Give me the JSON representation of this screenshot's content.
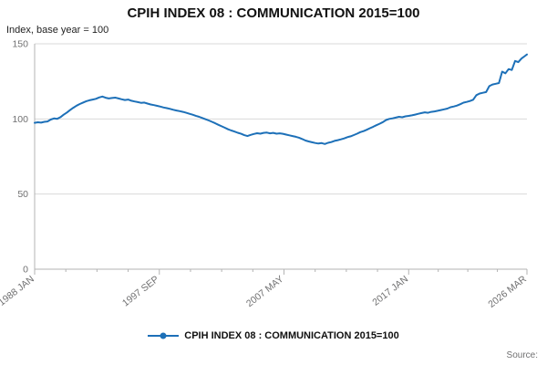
{
  "page": {
    "title": "CPIH INDEX 08 : COMMUNICATION 2015=100",
    "subtitle": "Index, base year = 100",
    "source_label": "Source:"
  },
  "chart_data": {
    "type": "line",
    "title": "CPIH INDEX 08 : COMMUNICATION 2015=100",
    "ylabel": "Index, base year = 100",
    "xlabel": "",
    "xlim": [
      1988.0,
      2026.17
    ],
    "ylim": [
      0,
      150
    ],
    "y_ticks": [
      0,
      50,
      100,
      150
    ],
    "x_ticks": [
      {
        "year": 1988.0,
        "label": "1988 JAN"
      },
      {
        "year": 1997.667,
        "label": "1997 SEP"
      },
      {
        "year": 2007.333,
        "label": "2007 MAY"
      },
      {
        "year": 2017.0,
        "label": "2017 JAN"
      },
      {
        "year": 2026.17,
        "label": "2026 MAR"
      }
    ],
    "grid": "horizontal",
    "legend_position": "bottom",
    "line_color": "#1d70b8",
    "grid_color": "#d9d9d9",
    "axis_color": "#b3b3b3",
    "tick_label_color": "#707071",
    "series": [
      {
        "name": "CPIH INDEX 08 : COMMUNICATION 2015=100",
        "points": [
          [
            1988.0,
            97.4
          ],
          [
            1988.25,
            97.8
          ],
          [
            1988.5,
            97.5
          ],
          [
            1988.75,
            98.1
          ],
          [
            1989.0,
            98.3
          ],
          [
            1989.25,
            99.6
          ],
          [
            1989.5,
            100.3
          ],
          [
            1989.75,
            100.1
          ],
          [
            1990.0,
            101.2
          ],
          [
            1990.25,
            102.8
          ],
          [
            1990.5,
            104.3
          ],
          [
            1990.75,
            105.9
          ],
          [
            1991.0,
            107.4
          ],
          [
            1991.25,
            108.8
          ],
          [
            1991.5,
            109.9
          ],
          [
            1991.75,
            110.9
          ],
          [
            1992.0,
            111.8
          ],
          [
            1992.25,
            112.4
          ],
          [
            1992.5,
            112.9
          ],
          [
            1992.75,
            113.4
          ],
          [
            1993.0,
            114.3
          ],
          [
            1993.25,
            114.9
          ],
          [
            1993.5,
            114.1
          ],
          [
            1993.75,
            113.6
          ],
          [
            1994.0,
            113.9
          ],
          [
            1994.25,
            114.2
          ],
          [
            1994.5,
            113.6
          ],
          [
            1994.75,
            113.1
          ],
          [
            1995.0,
            112.6
          ],
          [
            1995.25,
            112.9
          ],
          [
            1995.5,
            112.1
          ],
          [
            1995.75,
            111.6
          ],
          [
            1996.0,
            111.2
          ],
          [
            1996.25,
            110.7
          ],
          [
            1996.5,
            110.9
          ],
          [
            1996.75,
            110.2
          ],
          [
            1997.0,
            109.6
          ],
          [
            1997.25,
            109.2
          ],
          [
            1997.5,
            108.7
          ],
          [
            1997.75,
            108.2
          ],
          [
            1998.0,
            107.6
          ],
          [
            1998.25,
            107.2
          ],
          [
            1998.5,
            106.7
          ],
          [
            1998.75,
            106.1
          ],
          [
            1999.0,
            105.6
          ],
          [
            1999.25,
            105.2
          ],
          [
            1999.5,
            104.7
          ],
          [
            1999.75,
            104.1
          ],
          [
            2000.0,
            103.4
          ],
          [
            2000.25,
            102.8
          ],
          [
            2000.5,
            102.1
          ],
          [
            2000.75,
            101.4
          ],
          [
            2001.0,
            100.6
          ],
          [
            2001.25,
            99.8
          ],
          [
            2001.5,
            99.0
          ],
          [
            2001.75,
            98.1
          ],
          [
            2002.0,
            97.1
          ],
          [
            2002.25,
            96.1
          ],
          [
            2002.5,
            95.1
          ],
          [
            2002.75,
            94.1
          ],
          [
            2003.0,
            93.1
          ],
          [
            2003.25,
            92.3
          ],
          [
            2003.5,
            91.6
          ],
          [
            2003.75,
            90.8
          ],
          [
            2004.0,
            90.1
          ],
          [
            2004.25,
            89.2
          ],
          [
            2004.5,
            88.6
          ],
          [
            2004.75,
            89.4
          ],
          [
            2005.0,
            90.0
          ],
          [
            2005.25,
            90.5
          ],
          [
            2005.5,
            90.2
          ],
          [
            2005.75,
            90.7
          ],
          [
            2006.0,
            90.9
          ],
          [
            2006.25,
            90.4
          ],
          [
            2006.5,
            90.7
          ],
          [
            2006.75,
            90.2
          ],
          [
            2007.0,
            90.4
          ],
          [
            2007.25,
            90.1
          ],
          [
            2007.5,
            89.6
          ],
          [
            2007.75,
            89.1
          ],
          [
            2008.0,
            88.6
          ],
          [
            2008.25,
            88.1
          ],
          [
            2008.5,
            87.5
          ],
          [
            2008.75,
            86.6
          ],
          [
            2009.0,
            85.6
          ],
          [
            2009.25,
            85.0
          ],
          [
            2009.5,
            84.5
          ],
          [
            2009.75,
            84.0
          ],
          [
            2010.0,
            83.6
          ],
          [
            2010.25,
            83.9
          ],
          [
            2010.5,
            83.3
          ],
          [
            2010.75,
            84.1
          ],
          [
            2011.0,
            84.6
          ],
          [
            2011.25,
            85.4
          ],
          [
            2011.5,
            85.9
          ],
          [
            2011.75,
            86.4
          ],
          [
            2012.0,
            87.0
          ],
          [
            2012.25,
            87.9
          ],
          [
            2012.5,
            88.4
          ],
          [
            2012.75,
            89.3
          ],
          [
            2013.0,
            90.2
          ],
          [
            2013.25,
            91.2
          ],
          [
            2013.5,
            91.9
          ],
          [
            2013.75,
            92.8
          ],
          [
            2014.0,
            93.8
          ],
          [
            2014.25,
            94.8
          ],
          [
            2014.5,
            95.8
          ],
          [
            2014.75,
            96.8
          ],
          [
            2015.0,
            97.9
          ],
          [
            2015.25,
            99.3
          ],
          [
            2015.5,
            100.0
          ],
          [
            2015.75,
            100.4
          ],
          [
            2016.0,
            100.9
          ],
          [
            2016.25,
            101.4
          ],
          [
            2016.5,
            101.1
          ],
          [
            2016.75,
            101.7
          ],
          [
            2017.0,
            102.0
          ],
          [
            2017.25,
            102.4
          ],
          [
            2017.5,
            102.9
          ],
          [
            2017.75,
            103.4
          ],
          [
            2018.0,
            103.9
          ],
          [
            2018.25,
            104.4
          ],
          [
            2018.5,
            104.1
          ],
          [
            2018.75,
            104.7
          ],
          [
            2019.0,
            105.0
          ],
          [
            2019.25,
            105.4
          ],
          [
            2019.5,
            105.9
          ],
          [
            2019.75,
            106.4
          ],
          [
            2020.0,
            106.9
          ],
          [
            2020.25,
            107.8
          ],
          [
            2020.5,
            108.3
          ],
          [
            2020.75,
            108.9
          ],
          [
            2021.0,
            109.8
          ],
          [
            2021.25,
            110.8
          ],
          [
            2021.5,
            111.3
          ],
          [
            2021.75,
            111.9
          ],
          [
            2022.0,
            112.8
          ],
          [
            2022.25,
            115.8
          ],
          [
            2022.5,
            116.9
          ],
          [
            2022.75,
            117.4
          ],
          [
            2023.0,
            117.9
          ],
          [
            2023.25,
            121.8
          ],
          [
            2023.5,
            122.9
          ],
          [
            2023.75,
            123.4
          ],
          [
            2024.0,
            123.9
          ],
          [
            2024.25,
            131.5
          ],
          [
            2024.5,
            130.4
          ],
          [
            2024.75,
            133.2
          ],
          [
            2025.0,
            132.6
          ],
          [
            2025.25,
            138.6
          ],
          [
            2025.5,
            137.8
          ],
          [
            2025.75,
            140.2
          ],
          [
            2026.0,
            141.8
          ],
          [
            2026.17,
            142.9
          ]
        ]
      }
    ]
  }
}
